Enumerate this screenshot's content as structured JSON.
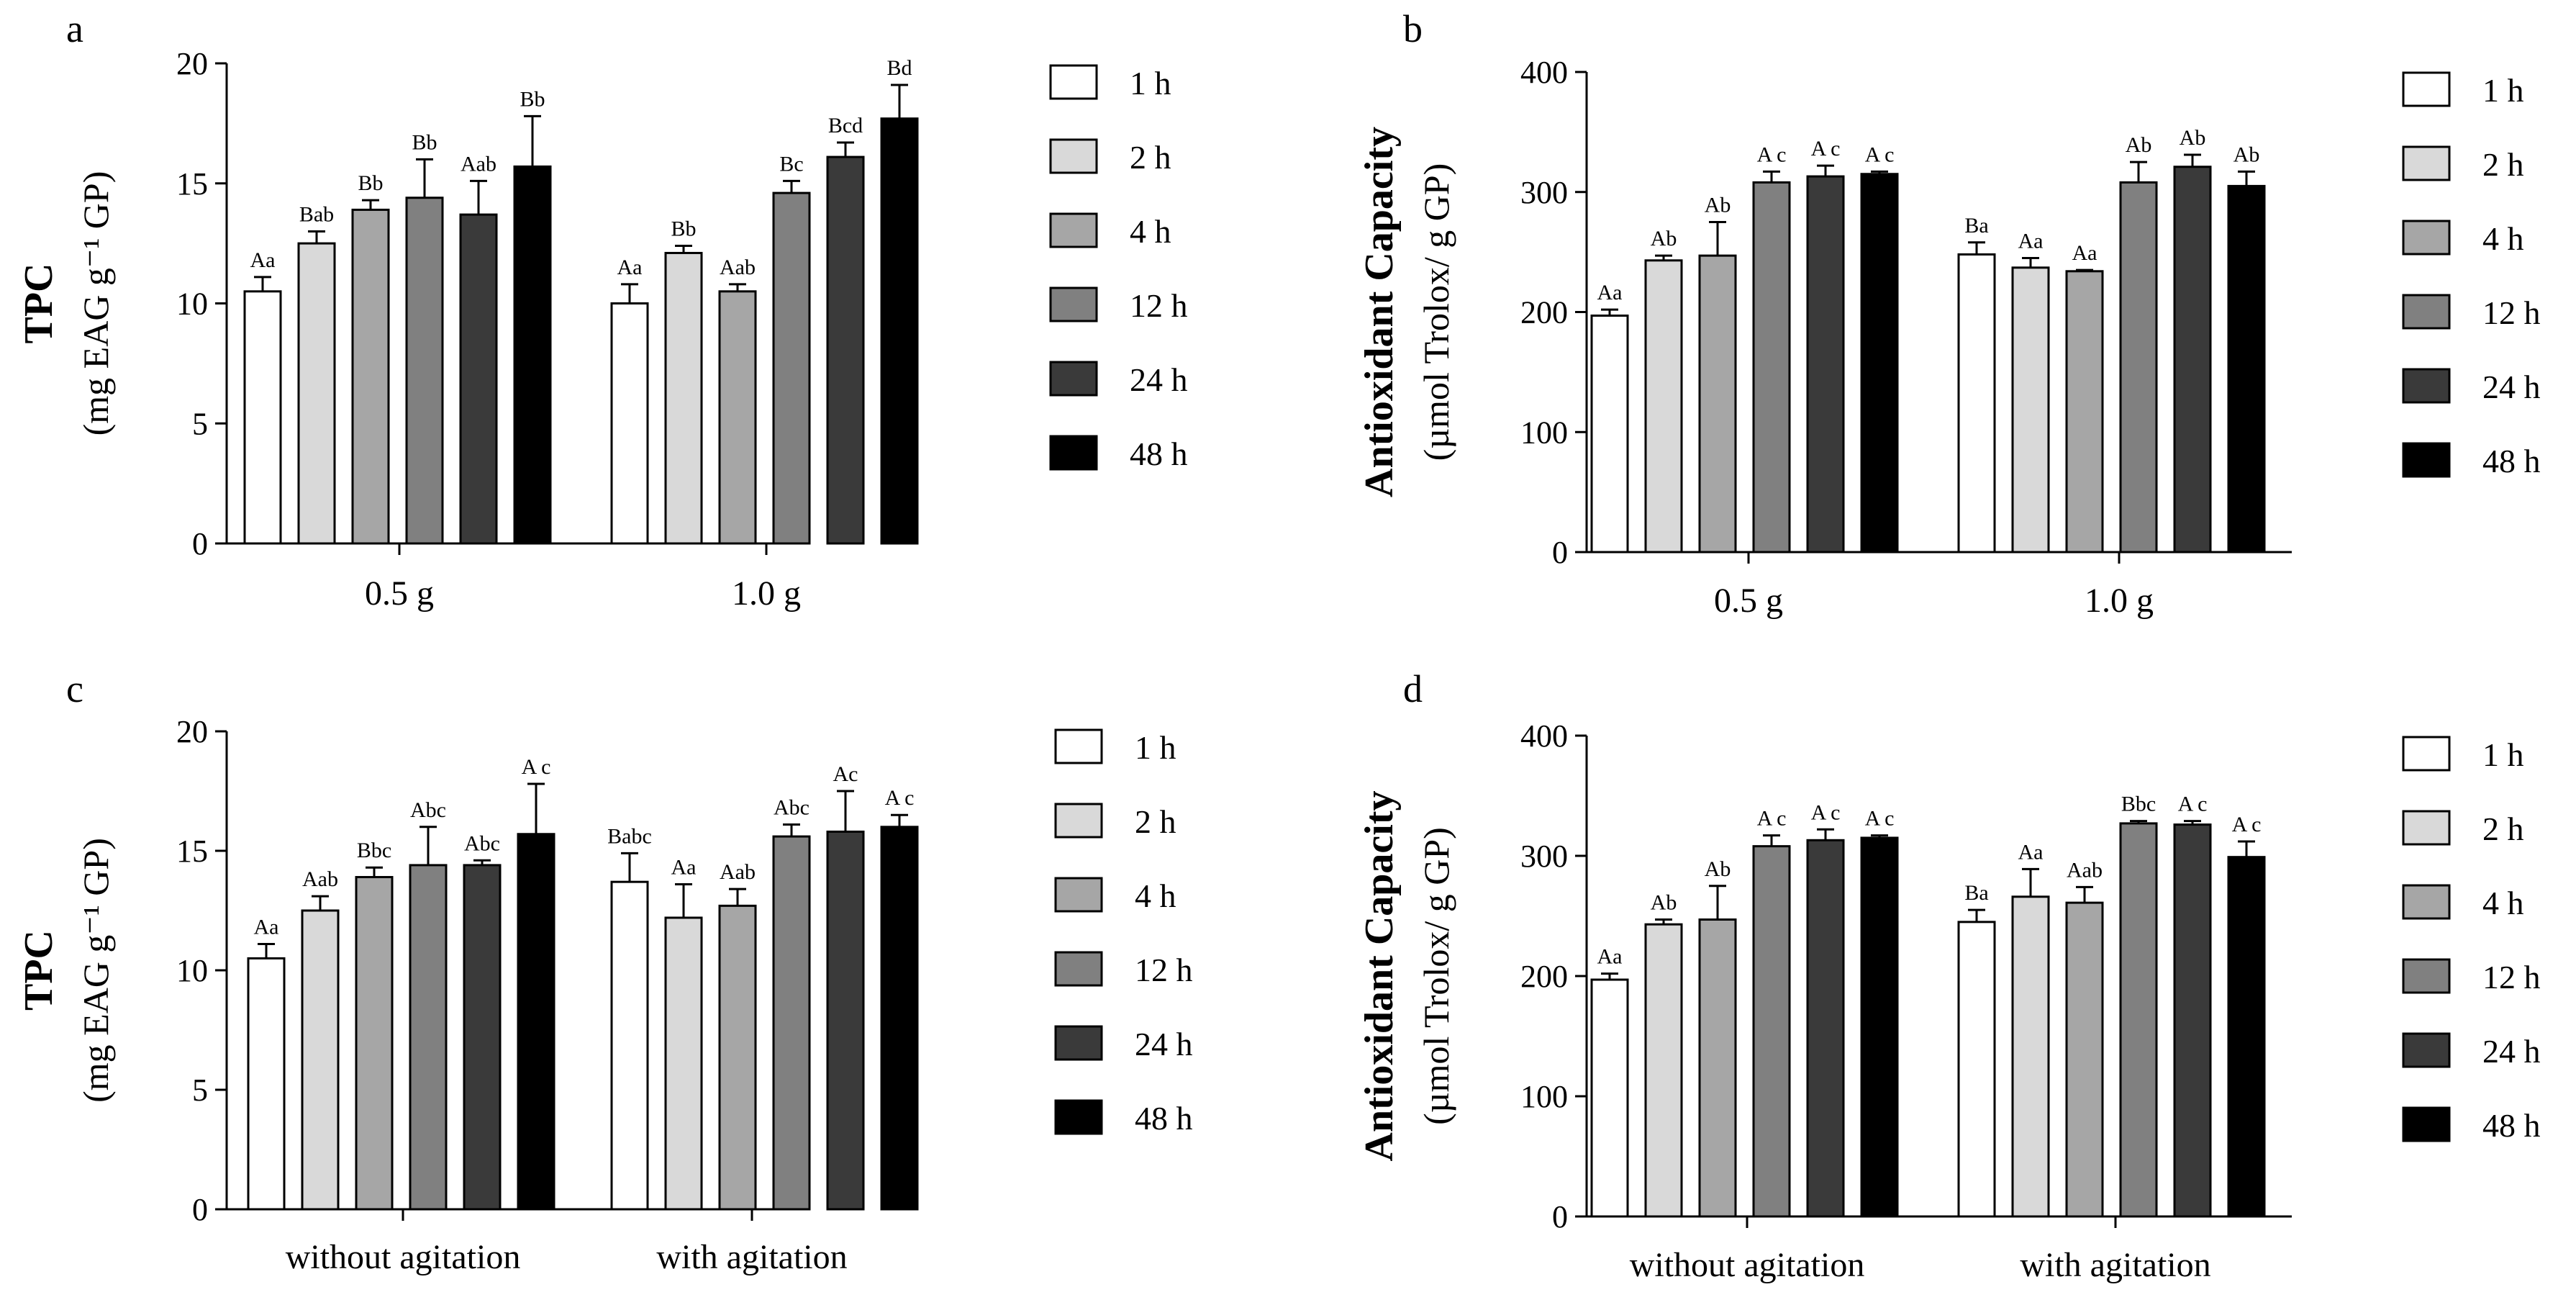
{
  "legend": {
    "times": [
      "1 h",
      "2 h",
      "4 h",
      "12 h",
      "24 h",
      "48 h"
    ],
    "colors": [
      "#ffffff",
      "#d9d9d9",
      "#a6a6a6",
      "#808080",
      "#3a3a3a",
      "#000000"
    ]
  },
  "chart_data": [
    {
      "type": "bar",
      "panel": "a",
      "title": "",
      "ylabel_main": "TPC",
      "ylabel_sub": "(mg EAG g⁻¹ GP)",
      "xlabel": "",
      "ylim": [
        0,
        20
      ],
      "yticks": [
        0,
        5,
        10,
        15,
        20
      ],
      "categories": [
        "0.5 g",
        "1.0 g"
      ],
      "series": [
        {
          "name": "1 h",
          "values": [
            10.5,
            10.0
          ],
          "errors": [
            0.6,
            0.8
          ],
          "labels": [
            "Aa",
            "Aa"
          ]
        },
        {
          "name": "2 h",
          "values": [
            12.5,
            12.1
          ],
          "errors": [
            0.5,
            0.3
          ],
          "labels": [
            "Bab",
            "Bb"
          ]
        },
        {
          "name": "4 h",
          "values": [
            13.9,
            10.5
          ],
          "errors": [
            0.4,
            0.3
          ],
          "labels": [
            "Bb",
            "Aab"
          ]
        },
        {
          "name": "12 h",
          "values": [
            14.4,
            14.6
          ],
          "errors": [
            1.6,
            0.5
          ],
          "labels": [
            "Bb",
            "Bc"
          ]
        },
        {
          "name": "24 h",
          "values": [
            13.7,
            16.1
          ],
          "errors": [
            1.4,
            0.6
          ],
          "labels": [
            "Aab",
            "Bcd"
          ]
        },
        {
          "name": "48 h",
          "values": [
            15.7,
            17.7
          ],
          "errors": [
            2.1,
            1.4
          ],
          "labels": [
            "Bb",
            "Bd"
          ]
        }
      ]
    },
    {
      "type": "bar",
      "panel": "b",
      "title": "",
      "ylabel_main": "Antioxidant Capacity",
      "ylabel_sub": "(µmol Trolox/ g GP)",
      "xlabel": "",
      "ylim": [
        0,
        400
      ],
      "yticks": [
        0,
        100,
        200,
        300,
        400
      ],
      "categories": [
        "0.5 g",
        "1.0 g"
      ],
      "series": [
        {
          "name": "1 h",
          "values": [
            197,
            248
          ],
          "errors": [
            5,
            10
          ],
          "labels": [
            "Aa",
            "Ba"
          ]
        },
        {
          "name": "2 h",
          "values": [
            243,
            237
          ],
          "errors": [
            4,
            8
          ],
          "labels": [
            "Ab",
            "Aa"
          ]
        },
        {
          "name": "4 h",
          "values": [
            247,
            234
          ],
          "errors": [
            28,
            1
          ],
          "labels": [
            "Ab",
            "Aa"
          ]
        },
        {
          "name": "12 h",
          "values": [
            308,
            308
          ],
          "errors": [
            9,
            17
          ],
          "labels": [
            "A c",
            "Ab"
          ]
        },
        {
          "name": "24 h",
          "values": [
            313,
            321
          ],
          "errors": [
            9,
            10
          ],
          "labels": [
            "A c",
            "Ab"
          ]
        },
        {
          "name": "48 h",
          "values": [
            315,
            305
          ],
          "errors": [
            2,
            12
          ],
          "labels": [
            "A c",
            "Ab"
          ]
        }
      ]
    },
    {
      "type": "bar",
      "panel": "c",
      "title": "",
      "ylabel_main": "TPC",
      "ylabel_sub": "(mg EAG g⁻¹ GP)",
      "xlabel": "",
      "ylim": [
        0,
        20
      ],
      "yticks": [
        0,
        5,
        10,
        15,
        20
      ],
      "categories": [
        "without agitation",
        "with agitation"
      ],
      "series": [
        {
          "name": "1 h",
          "values": [
            10.5,
            13.7
          ],
          "errors": [
            0.6,
            1.2
          ],
          "labels": [
            "Aa",
            "Babc"
          ]
        },
        {
          "name": "2 h",
          "values": [
            12.5,
            12.2
          ],
          "errors": [
            0.6,
            1.4
          ],
          "labels": [
            "Aab",
            "Aa"
          ]
        },
        {
          "name": "4 h",
          "values": [
            13.9,
            12.7
          ],
          "errors": [
            0.4,
            0.7
          ],
          "labels": [
            "Bbc",
            "Aab"
          ]
        },
        {
          "name": "12 h",
          "values": [
            14.4,
            15.6
          ],
          "errors": [
            1.6,
            0.5
          ],
          "labels": [
            "Abc",
            "Abc"
          ]
        },
        {
          "name": "24 h",
          "values": [
            14.4,
            15.8
          ],
          "errors": [
            0.2,
            1.7
          ],
          "labels": [
            "Abc",
            "Ac"
          ]
        },
        {
          "name": "48 h",
          "values": [
            15.7,
            16.0
          ],
          "errors": [
            2.1,
            0.5
          ],
          "labels": [
            "A c",
            "A c"
          ]
        }
      ]
    },
    {
      "type": "bar",
      "panel": "d",
      "title": "",
      "ylabel_main": "Antioxidant Capacity",
      "ylabel_sub": "(µmol Trolox/ g GP)",
      "xlabel": "",
      "ylim": [
        0,
        400
      ],
      "yticks": [
        0,
        100,
        200,
        300,
        400
      ],
      "categories": [
        "without agitation",
        "with agitation"
      ],
      "series": [
        {
          "name": "1 h",
          "values": [
            197,
            245
          ],
          "errors": [
            5,
            10
          ],
          "labels": [
            "Aa",
            "Ba"
          ]
        },
        {
          "name": "2 h",
          "values": [
            243,
            266
          ],
          "errors": [
            4,
            23
          ],
          "labels": [
            "Ab",
            "Aa"
          ]
        },
        {
          "name": "4 h",
          "values": [
            247,
            261
          ],
          "errors": [
            28,
            13
          ],
          "labels": [
            "Ab",
            "Aab"
          ]
        },
        {
          "name": "12 h",
          "values": [
            308,
            327
          ],
          "errors": [
            9,
            2
          ],
          "labels": [
            "A c",
            "Bbc"
          ]
        },
        {
          "name": "24 h",
          "values": [
            313,
            326
          ],
          "errors": [
            9,
            3
          ],
          "labels": [
            "A c",
            "A c"
          ]
        },
        {
          "name": "48 h",
          "values": [
            315,
            299
          ],
          "errors": [
            2,
            13
          ],
          "labels": [
            "A c",
            "A c"
          ]
        }
      ]
    }
  ]
}
